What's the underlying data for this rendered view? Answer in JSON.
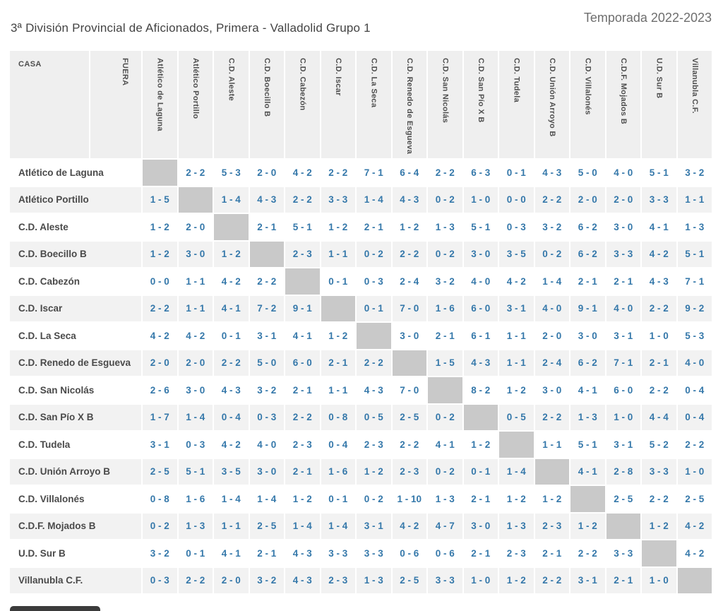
{
  "header": {
    "title": "3ª División Provincial de Aficionados, Primera - Valladolid Grupo 1",
    "season": "Temporada 2022-2023"
  },
  "table": {
    "home_label": "CASA",
    "away_label": "FUERA",
    "teams": [
      "Atlético de Laguna",
      "Atlético Portillo",
      "C.D. Aleste",
      "C.D. Boecillo B",
      "C.D. Cabezón",
      "C.D. Iscar",
      "C.D. La Seca",
      "C.D. Renedo de Esgueva",
      "C.D. San Nicolás",
      "C.D. San Pío X B",
      "C.D. Tudela",
      "C.D. Unión Arroyo B",
      "C.D. Villalonés",
      "C.D.F. Mojados B",
      "U.D. Sur B",
      "Villanubla C.F."
    ],
    "results": [
      [
        null,
        "2 - 2",
        "5 - 3",
        "2 - 0",
        "4 - 2",
        "2 - 2",
        "7 - 1",
        "6 - 4",
        "2 - 2",
        "6 - 3",
        "0 - 1",
        "4 - 3",
        "5 - 0",
        "4 - 0",
        "5 - 1",
        "3 - 2"
      ],
      [
        "1 - 5",
        null,
        "1 - 4",
        "4 - 3",
        "2 - 2",
        "3 - 3",
        "1 - 4",
        "4 - 3",
        "0 - 2",
        "1 - 0",
        "0 - 0",
        "2 - 2",
        "2 - 0",
        "2 - 0",
        "3 - 3",
        "1 - 1"
      ],
      [
        "1 - 2",
        "2 - 0",
        null,
        "2 - 1",
        "5 - 1",
        "1 - 2",
        "2 - 1",
        "1 - 2",
        "1 - 3",
        "5 - 1",
        "0 - 3",
        "3 - 2",
        "6 - 2",
        "3 - 0",
        "4 - 1",
        "1 - 3"
      ],
      [
        "1 - 2",
        "3 - 0",
        "1 - 2",
        null,
        "2 - 3",
        "1 - 1",
        "0 - 2",
        "2 - 2",
        "0 - 2",
        "3 - 0",
        "3 - 5",
        "0 - 2",
        "6 - 2",
        "3 - 3",
        "4 - 2",
        "5 - 1"
      ],
      [
        "0 - 0",
        "1 - 1",
        "4 - 2",
        "2 - 2",
        null,
        "0 - 1",
        "0 - 3",
        "2 - 4",
        "3 - 2",
        "4 - 0",
        "4 - 2",
        "1 - 4",
        "2 - 1",
        "2 - 1",
        "4 - 3",
        "7 - 1"
      ],
      [
        "2 - 2",
        "1 - 1",
        "4 - 1",
        "7 - 2",
        "9 - 1",
        null,
        "0 - 1",
        "7 - 0",
        "1 - 6",
        "6 - 0",
        "3 - 1",
        "4 - 0",
        "9 - 1",
        "4 - 0",
        "2 - 2",
        "9 - 2"
      ],
      [
        "4 - 2",
        "4 - 2",
        "0 - 1",
        "3 - 1",
        "4 - 1",
        "1 - 2",
        null,
        "3 - 0",
        "2 - 1",
        "6 - 1",
        "1 - 1",
        "2 - 0",
        "3 - 0",
        "3 - 1",
        "1 - 0",
        "5 - 3"
      ],
      [
        "2 - 0",
        "2 - 0",
        "2 - 2",
        "5 - 0",
        "6 - 0",
        "2 - 1",
        "2 - 2",
        null,
        "1 - 5",
        "4 - 3",
        "1 - 1",
        "2 - 4",
        "6 - 2",
        "7 - 1",
        "2 - 1",
        "4 - 0"
      ],
      [
        "2 - 6",
        "3 - 0",
        "4 - 3",
        "3 - 2",
        "2 - 1",
        "1 - 1",
        "4 - 3",
        "7 - 0",
        null,
        "8 - 2",
        "1 - 2",
        "3 - 0",
        "4 - 1",
        "6 - 0",
        "2 - 2",
        "0 - 4"
      ],
      [
        "1 - 7",
        "1 - 4",
        "0 - 4",
        "0 - 3",
        "2 - 2",
        "0 - 8",
        "0 - 5",
        "2 - 5",
        "0 - 2",
        null,
        "0 - 5",
        "2 - 2",
        "1 - 3",
        "1 - 0",
        "4 - 4",
        "0 - 4"
      ],
      [
        "3 - 1",
        "0 - 3",
        "4 - 2",
        "4 - 0",
        "2 - 3",
        "0 - 4",
        "2 - 3",
        "2 - 2",
        "4 - 1",
        "1 - 2",
        null,
        "1 - 1",
        "5 - 1",
        "3 - 1",
        "5 - 2",
        "2 - 2"
      ],
      [
        "2 - 5",
        "5 - 1",
        "3 - 5",
        "3 - 0",
        "2 - 1",
        "1 - 6",
        "1 - 2",
        "2 - 3",
        "0 - 2",
        "0 - 1",
        "1 - 4",
        null,
        "4 - 1",
        "2 - 8",
        "3 - 3",
        "1 - 0"
      ],
      [
        "0 - 8",
        "1 - 6",
        "1 - 4",
        "1 - 4",
        "1 - 2",
        "0 - 1",
        "0 - 2",
        "1 - 10",
        "1 - 3",
        "2 - 1",
        "1 - 2",
        "1 - 2",
        null,
        "2 - 5",
        "2 - 2",
        "2 - 5"
      ],
      [
        "0 - 2",
        "1 - 3",
        "1 - 1",
        "2 - 5",
        "1 - 4",
        "1 - 4",
        "3 - 1",
        "4 - 2",
        "4 - 7",
        "3 - 0",
        "1 - 3",
        "2 - 3",
        "1 - 2",
        null,
        "1 - 2",
        "4 - 2"
      ],
      [
        "3 - 2",
        "0 - 1",
        "4 - 1",
        "2 - 1",
        "4 - 3",
        "3 - 3",
        "3 - 3",
        "0 - 6",
        "0 - 6",
        "2 - 1",
        "2 - 3",
        "2 - 1",
        "2 - 2",
        "3 - 3",
        null,
        "4 - 2"
      ],
      [
        "0 - 3",
        "2 - 2",
        "2 - 0",
        "3 - 2",
        "4 - 3",
        "2 - 3",
        "1 - 3",
        "2 - 5",
        "3 - 3",
        "1 - 0",
        "1 - 2",
        "2 - 2",
        "3 - 1",
        "2 - 1",
        "1 - 0",
        null
      ]
    ]
  },
  "colors": {
    "score_text": "#3578aa",
    "diagonal_cell": "#c9c9c9",
    "alt_row_bg": "#f2f2f2",
    "header_bg": "#efefef"
  }
}
